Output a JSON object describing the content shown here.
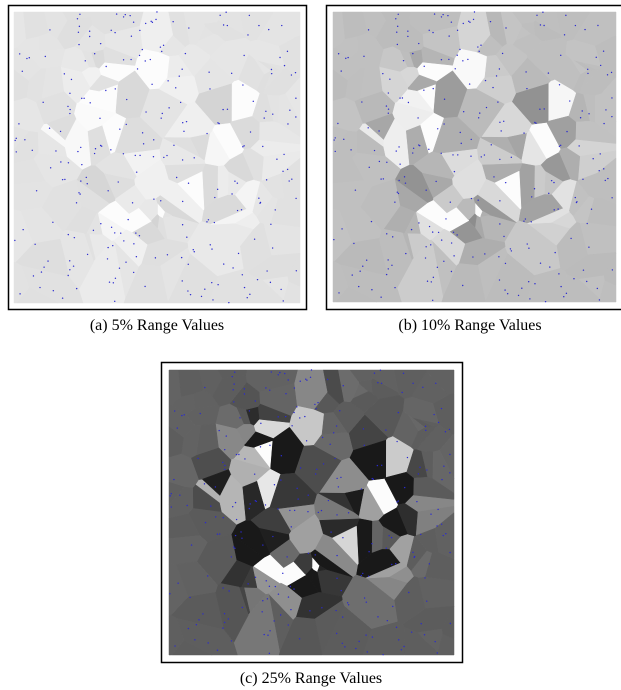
{
  "figures": [
    {
      "caption": "(a) 5% Range Values"
    },
    {
      "caption": "(b) 10% Range Values"
    },
    {
      "caption": "(c) 25% Range Values"
    }
  ]
}
